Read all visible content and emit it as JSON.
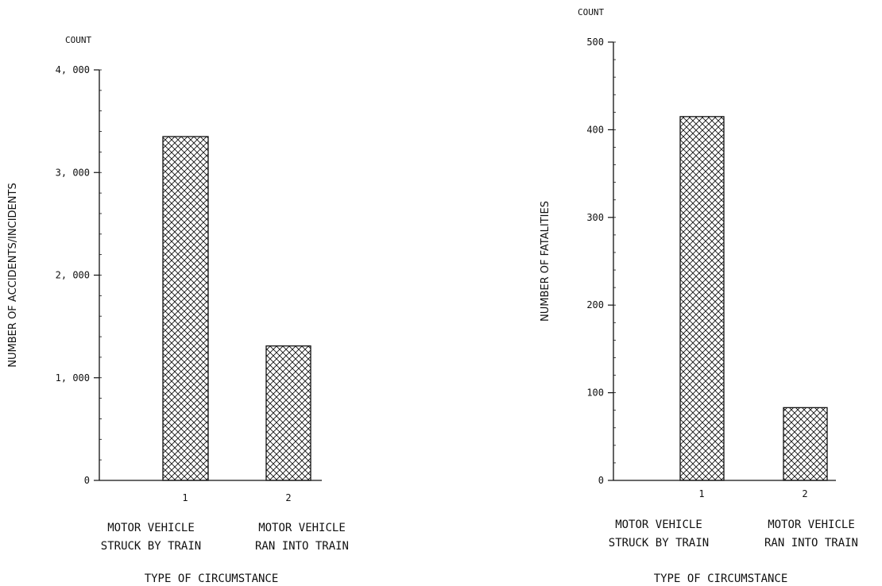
{
  "chart_data": [
    {
      "type": "bar",
      "title": "",
      "unit_label": "COUNT",
      "ylabel": "NUMBER OF ACCIDENTS/INCIDENTS",
      "xlabel": "TYPE OF CIRCUMSTANCE",
      "categories": [
        "1",
        "2"
      ],
      "category_captions": [
        [
          "MOTOR VEHICLE",
          "STRUCK BY TRAIN"
        ],
        [
          "MOTOR VEHICLE",
          "RAN INTO TRAIN"
        ]
      ],
      "values": [
        3350,
        1310
      ],
      "ylim": [
        0,
        4000
      ],
      "yticks": [
        0,
        1000,
        2000,
        3000,
        4000
      ],
      "ytick_labels": [
        "0",
        "1, 000",
        "2, 000",
        "3, 000",
        "4, 000"
      ],
      "minor_tick_step": 200,
      "grid": false,
      "fill_pattern": "crosshatch"
    },
    {
      "type": "bar",
      "title": "",
      "unit_label": "COUNT",
      "ylabel": "NUMBER OF FATALITIES",
      "xlabel": "TYPE OF CIRCUMSTANCE",
      "categories": [
        "1",
        "2"
      ],
      "category_captions": [
        [
          "MOTOR VEHICLE",
          "STRUCK BY TRAIN"
        ],
        [
          "MOTOR VEHICLE",
          "RAN INTO TRAIN"
        ]
      ],
      "values": [
        415,
        83
      ],
      "ylim": [
        0,
        500
      ],
      "yticks": [
        0,
        100,
        200,
        300,
        400,
        500
      ],
      "ytick_labels": [
        "0",
        "100",
        "200",
        "300",
        "400",
        "500"
      ],
      "minor_tick_step": 20,
      "grid": false,
      "fill_pattern": "crosshatch"
    }
  ]
}
